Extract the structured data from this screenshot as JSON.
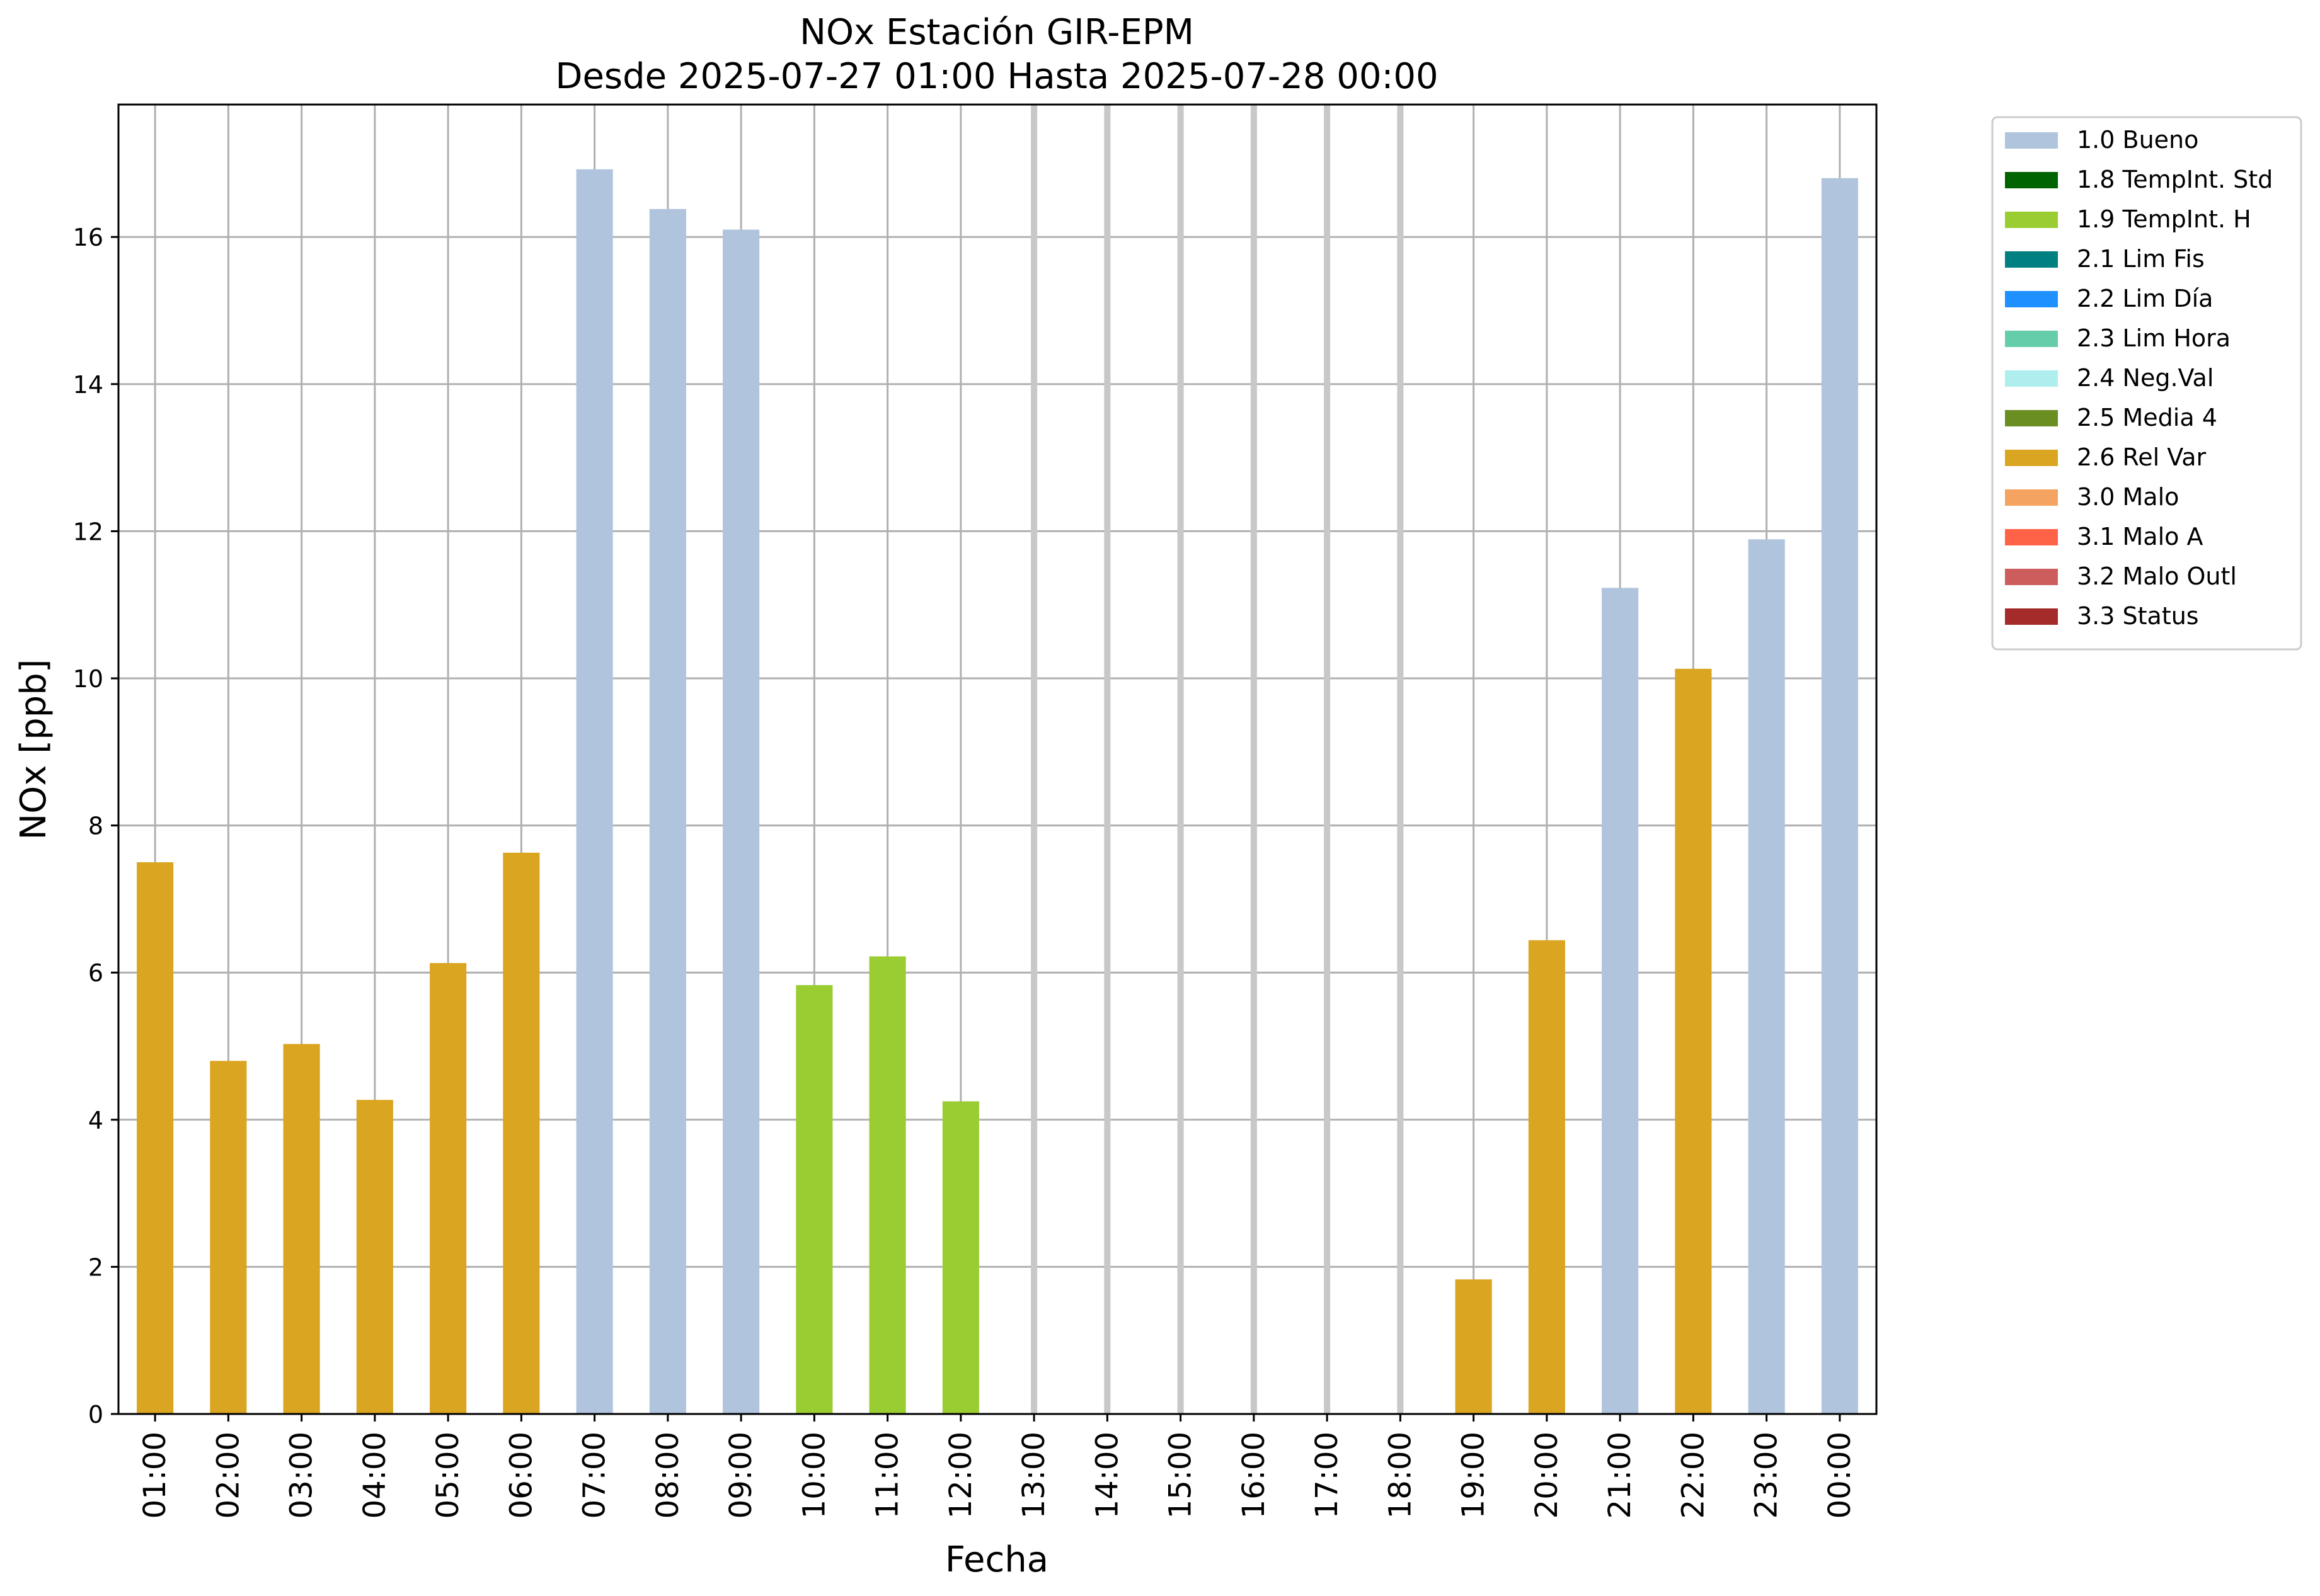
{
  "chart_data": {
    "type": "bar",
    "title": "NOx Estación GIR-EPM",
    "subtitle": "Desde 2025-07-27 01:00 Hasta 2025-07-28 00:00",
    "xlabel": "Fecha",
    "ylabel": "NOx [ppb]",
    "ylim": [
      0,
      17.8
    ],
    "yticks": [
      0,
      2,
      4,
      6,
      8,
      10,
      12,
      14,
      16
    ],
    "grid": true,
    "legend_position": "outside-top-right",
    "categories": [
      "01:00",
      "02:00",
      "03:00",
      "04:00",
      "05:00",
      "06:00",
      "07:00",
      "08:00",
      "09:00",
      "10:00",
      "11:00",
      "12:00",
      "13:00",
      "14:00",
      "15:00",
      "16:00",
      "17:00",
      "18:00",
      "19:00",
      "20:00",
      "21:00",
      "22:00",
      "23:00",
      "00:00"
    ],
    "values": [
      7.5,
      4.8,
      5.03,
      4.27,
      6.13,
      7.63,
      16.92,
      16.38,
      16.1,
      5.83,
      6.22,
      4.25,
      null,
      null,
      null,
      null,
      null,
      null,
      1.83,
      6.44,
      11.23,
      10.13,
      11.89,
      16.8
    ],
    "flags": [
      "2.6",
      "2.6",
      "2.6",
      "2.6",
      "2.6",
      "2.6",
      "1.0",
      "1.0",
      "1.0",
      "1.9",
      "1.9",
      "1.9",
      null,
      null,
      null,
      null,
      null,
      null,
      "2.6",
      "2.6",
      "1.0",
      "2.6",
      "1.0",
      "1.0"
    ],
    "legend": [
      {
        "code": "1.0",
        "label": "1.0 Bueno",
        "color": "#b0c4de"
      },
      {
        "code": "1.8",
        "label": "1.8 TempInt. Std",
        "color": "#006400"
      },
      {
        "code": "1.9",
        "label": "1.9 TempInt. H",
        "color": "#9acd32"
      },
      {
        "code": "2.1",
        "label": "2.1 Lim Fis",
        "color": "#008080"
      },
      {
        "code": "2.2",
        "label": "2.2 Lim Día",
        "color": "#1e90ff"
      },
      {
        "code": "2.3",
        "label": "2.3 Lim Hora",
        "color": "#66cdaa"
      },
      {
        "code": "2.4",
        "label": "2.4 Neg.Val",
        "color": "#afeeee"
      },
      {
        "code": "2.5",
        "label": "2.5 Media 4",
        "color": "#6b8e23"
      },
      {
        "code": "2.6",
        "label": "2.6 Rel Var",
        "color": "#daa520"
      },
      {
        "code": "3.0",
        "label": "3.0 Malo",
        "color": "#f4a460"
      },
      {
        "code": "3.1",
        "label": "3.1 Malo A",
        "color": "#ff6347"
      },
      {
        "code": "3.2",
        "label": "3.2 Malo Outl",
        "color": "#cd5c5c"
      },
      {
        "code": "3.3",
        "label": "3.3 Status",
        "color": "#a52a2a"
      }
    ]
  }
}
